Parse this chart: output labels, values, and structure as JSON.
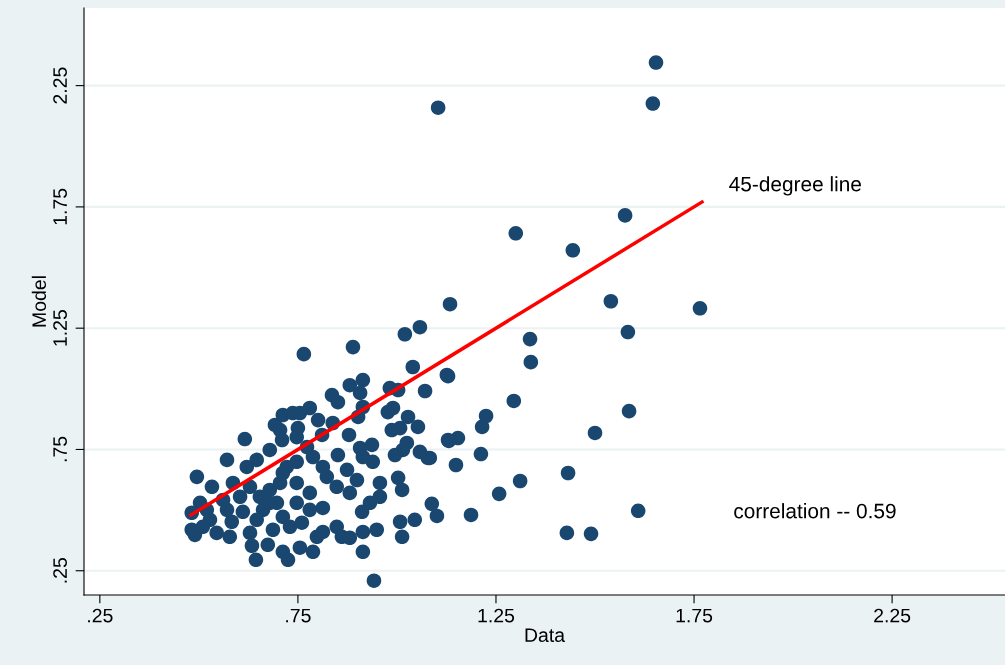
{
  "chart_data": {
    "type": "scatter",
    "xlabel": "Data",
    "ylabel": "Model",
    "xlim": [
      0.21,
      2.535
    ],
    "ylim": [
      0.15,
      2.57
    ],
    "xticks": [
      {
        "value": 0.25,
        "label": ".25"
      },
      {
        "value": 0.75,
        "label": ".75"
      },
      1.25,
      1.75,
      2.25
    ],
    "yticks": [
      {
        "value": 0.25,
        "label": ".25"
      },
      {
        "value": 0.75,
        "label": ".75"
      },
      1.25,
      1.75,
      2.25
    ],
    "grid": "y",
    "annotations": [
      "45-degree line",
      "correlation -- 0.59"
    ],
    "series": [
      {
        "color": "#1a476f",
        "marker": "circle",
        "x": [
          1.654,
          1.646,
          1.104,
          1.3,
          1.576,
          1.444,
          1.54,
          1.765,
          1.583,
          1.134,
          1.058,
          1.02,
          1.336,
          1.338,
          0.765,
          0.889,
          1.586,
          1.5,
          1.295,
          1.225,
          1.215,
          1.212,
          1.149,
          1.432,
          1.311,
          1.258,
          1.609,
          1.187,
          1.429,
          1.49,
          1.129,
          1.071,
          1.154,
          1.131,
          1.101,
          1.088,
          1.083,
          0.616,
          0.571,
          0.495,
          0.533,
          0.503,
          0.482,
          0.482,
          0.49,
          0.545,
          0.578,
          0.583,
          0.629,
          0.634,
          0.644,
          0.674,
          0.712,
          0.725,
          0.755,
          0.788,
          0.798,
          0.813,
          0.76,
          0.848,
          0.861,
          0.881,
          0.914,
          0.914,
          0.949,
          0.942,
          0.912,
          0.932,
          0.957,
          0.957,
          1.008,
          1.045,
          1.013,
          1.003,
          1.013,
          0.899,
          0.874,
          0.881,
          0.848,
          0.823,
          0.813,
          0.851,
          0.788,
          0.747,
          0.773,
          0.722,
          0.679,
          0.646,
          0.621,
          0.586,
          0.561,
          0.604,
          0.629,
          0.654,
          0.679,
          0.697,
          0.662,
          0.611,
          0.712,
          0.73,
          0.687,
          0.747,
          0.78,
          0.813,
          0.78,
          0.747,
          0.705,
          0.712,
          0.71,
          0.705,
          0.692,
          0.712,
          0.737,
          0.755,
          0.78,
          0.801,
          0.75,
          0.747,
          0.811,
          0.838,
          0.836,
          0.851,
          0.881,
          0.914,
          0.907,
          0.914,
          0.902,
          0.879,
          0.907,
          0.937,
          0.939,
          0.914,
          0.982,
          1.003,
          0.99,
          0.977,
          1.028,
          1.053,
          0.987,
          1.008,
          1.025,
          1.015,
          0.995,
          1.058,
          1.078,
          1.126,
          1.129,
          1.04,
          0.646,
          0.679,
          0.571,
          0.528,
          0.51,
          0.52
        ],
        "values": [
          2.345,
          2.176,
          2.159,
          1.641,
          1.715,
          1.571,
          1.361,
          1.332,
          1.234,
          1.349,
          1.254,
          1.225,
          1.205,
          1.11,
          1.143,
          1.172,
          0.908,
          0.818,
          0.95,
          0.888,
          0.843,
          0.731,
          0.686,
          0.653,
          0.62,
          0.567,
          0.497,
          0.48,
          0.406,
          0.402,
          1.052,
          0.991,
          0.797,
          0.785,
          0.476,
          0.526,
          0.715,
          0.793,
          0.707,
          0.637,
          0.596,
          0.53,
          0.489,
          0.419,
          0.398,
          0.406,
          0.39,
          0.452,
          0.406,
          0.353,
          0.295,
          0.357,
          0.328,
          0.295,
          0.345,
          0.328,
          0.39,
          0.41,
          0.448,
          0.431,
          0.39,
          0.386,
          0.328,
          0.41,
          0.419,
          0.209,
          0.493,
          0.53,
          0.555,
          0.612,
          0.452,
          0.46,
          0.39,
          0.633,
          0.583,
          0.624,
          0.666,
          0.571,
          0.596,
          0.637,
          0.678,
          0.727,
          0.719,
          0.699,
          0.76,
          0.678,
          0.748,
          0.707,
          0.678,
          0.612,
          0.542,
          0.555,
          0.596,
          0.555,
          0.583,
          0.53,
          0.501,
          0.493,
          0.472,
          0.431,
          0.419,
          0.53,
          0.501,
          0.509,
          0.571,
          0.612,
          0.612,
          0.653,
          0.789,
          0.83,
          0.851,
          0.892,
          0.9,
          0.9,
          0.921,
          0.871,
          0.838,
          0.801,
          0.81,
          0.859,
          0.974,
          0.945,
          1.015,
          1.036,
          0.983,
          0.925,
          0.884,
          0.81,
          0.756,
          0.769,
          0.699,
          0.719,
          1.003,
          0.995,
          0.921,
          0.904,
          0.884,
          0.843,
          0.83,
          0.838,
          0.777,
          0.748,
          0.727,
          0.74,
          0.715,
          1.057,
          0.789,
          1.09,
          0.46,
          0.53,
          0.501,
          0.46,
          0.431,
          0.501
        ]
      },
      {
        "type": "line",
        "color": "#ff0000",
        "x": [
          0.48,
          1.77
        ],
        "values": [
          0.48,
          1.77
        ]
      }
    ]
  }
}
